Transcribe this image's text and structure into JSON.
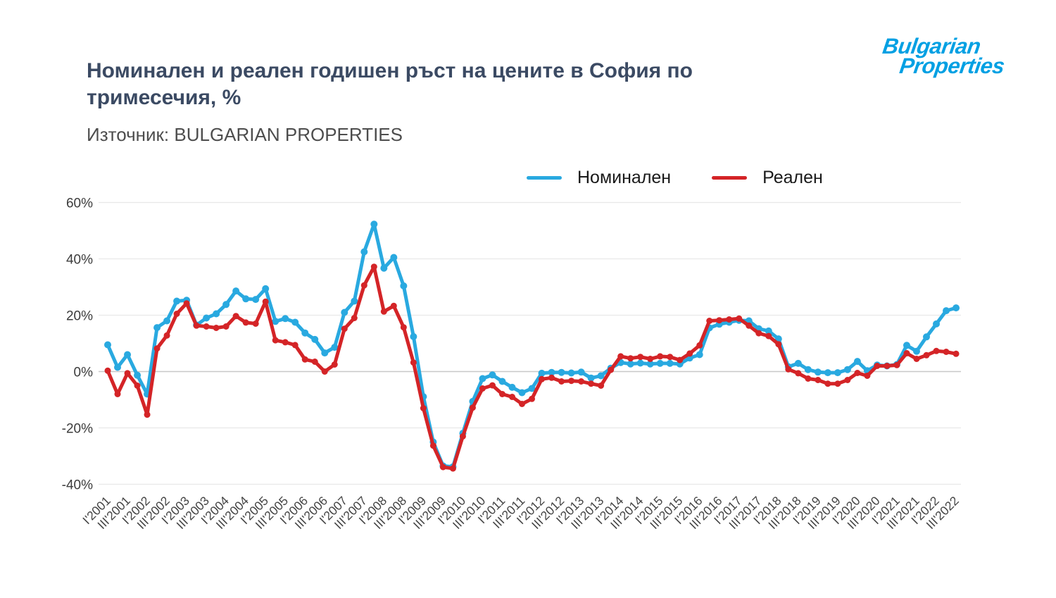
{
  "header": {
    "title_line1": "Номинален и реален годишен ръст на цените в София по",
    "title_line2": "тримесечия, %",
    "source": "Източник: BULGARIAN PROPERTIES"
  },
  "logo": {
    "line1": "Bulgarian",
    "line2": "Properties",
    "color": "#00A0E3"
  },
  "legend": {
    "items": [
      {
        "label": "Номинален",
        "color": "#29A9E0"
      },
      {
        "label": "Реален",
        "color": "#D42427"
      }
    ]
  },
  "colors": {
    "nominal": "#29A9E0",
    "real": "#D42427",
    "grid": "#e8e8e8",
    "zero_line": "#c8c8c8",
    "y_label": "#3c3c3c",
    "x_label": "#444444",
    "title": "#3b4a63"
  },
  "chart_data": {
    "type": "line",
    "title": "Номинален и реален годишен ръст на цените в София по тримесечия, %",
    "xlabel": "",
    "ylabel": "",
    "ylim": [
      -40,
      60
    ],
    "grid": true,
    "legend_position": "top",
    "x_tick_step": 2,
    "y_ticks": [
      60,
      40,
      20,
      0,
      -20,
      -40
    ],
    "y_tick_labels": [
      "60%",
      "40%",
      "20%",
      "0%",
      "-20%",
      "-40%"
    ],
    "categories": [
      "I'2001",
      "II'2001",
      "III'2001",
      "IV'2001",
      "I'2002",
      "II'2002",
      "III'2002",
      "IV'2002",
      "I'2003",
      "II'2003",
      "III'2003",
      "IV'2003",
      "I'2004",
      "II'2004",
      "III'2004",
      "IV'2004",
      "I'2005",
      "II'2005",
      "III'2005",
      "IV'2005",
      "I'2006",
      "II'2006",
      "III'2006",
      "IV'2006",
      "I'2007",
      "II'2007",
      "III'2007",
      "IV'2007",
      "I'2008",
      "II'2008",
      "III'2008",
      "IV'2008",
      "I'2009",
      "II'2009",
      "III'2009",
      "IV'2009",
      "I'2010",
      "II'2010",
      "III'2010",
      "IV'2010",
      "I'2011",
      "II'2011",
      "III'2011",
      "IV'2011",
      "I'2012",
      "II'2012",
      "III'2012",
      "IV'2012",
      "I'2013",
      "II'2013",
      "III'2013",
      "IV'2013",
      "I'2014",
      "II'2014",
      "III'2014",
      "IV'2014",
      "I'2015",
      "II'2015",
      "III'2015",
      "IV'2015",
      "I'2016",
      "II'2016",
      "III'2016",
      "IV'2016",
      "I'2017",
      "II'2017",
      "III'2017",
      "IV'2017",
      "I'2018",
      "II'2018",
      "III'2018",
      "IV'2018",
      "I'2019",
      "II'2019",
      "III'2019",
      "IV'2019",
      "I'2020",
      "II'2020",
      "III'2020",
      "IV'2020",
      "I'2021",
      "II'2021",
      "III'2021",
      "IV'2021",
      "I'2022",
      "II'2022",
      "III'2022"
    ],
    "series": [
      {
        "name": "Номинален",
        "color": "#29A9E0",
        "values": [
          9.5,
          1.5,
          6,
          -1.3,
          -8,
          15.6,
          18,
          25,
          25.3,
          16.5,
          19,
          20.5,
          23.8,
          28.6,
          25.8,
          25.6,
          29.4,
          17.8,
          18.8,
          17.5,
          13.7,
          11.4,
          6.6,
          8.6,
          21,
          25,
          42.5,
          52.3,
          36.7,
          40.5,
          30.4,
          12.4,
          -8.9,
          -25,
          -33.5,
          -33.8,
          -21.9,
          -10.6,
          -2.5,
          -1.2,
          -3.5,
          -5.6,
          -7.5,
          -6,
          -0.6,
          -0.3,
          -0.3,
          -0.5,
          -0.2,
          -2.3,
          -1.5,
          1.2,
          3.2,
          2.7,
          3,
          2.7,
          2.9,
          2.9,
          2.7,
          4.8,
          6,
          15.5,
          16.8,
          17.5,
          18.2,
          18,
          15.2,
          14.4,
          11.6,
          1.7,
          2.9,
          0.7,
          -0.2,
          -0.4,
          -0.4,
          0.7,
          3.6,
          0.3,
          2.3,
          2,
          2.5,
          9.3,
          7.2,
          12.3,
          16.9,
          21.6,
          22.6
        ]
      },
      {
        "name": "Реален",
        "color": "#D42427",
        "values": [
          0.3,
          -8,
          -0.6,
          -5,
          -15.3,
          8.2,
          12.8,
          20.5,
          24.2,
          16.3,
          16,
          15.5,
          16,
          19.7,
          17.4,
          17,
          24.8,
          11.1,
          10.4,
          9.4,
          4.3,
          3.5,
          0,
          2.5,
          15.2,
          19,
          30.6,
          37.2,
          21.3,
          23.3,
          15.7,
          3.2,
          -13,
          -26.3,
          -33.9,
          -34.4,
          -23,
          -12.8,
          -6,
          -4.9,
          -8,
          -9,
          -11.5,
          -9.7,
          -2.7,
          -2.2,
          -3.5,
          -3.3,
          -3.5,
          -4.3,
          -5,
          0.6,
          5.4,
          4.7,
          5.2,
          4.5,
          5.4,
          5.2,
          4.1,
          6.4,
          9.3,
          18,
          18.2,
          18.5,
          18.8,
          16.3,
          13.6,
          12.6,
          9.7,
          0.8,
          -0.6,
          -2.5,
          -3,
          -4.3,
          -4.3,
          -3,
          -0.5,
          -1.5,
          2,
          2,
          2.3,
          6.5,
          4.5,
          5.8,
          7.3,
          7,
          6.3
        ]
      }
    ]
  }
}
